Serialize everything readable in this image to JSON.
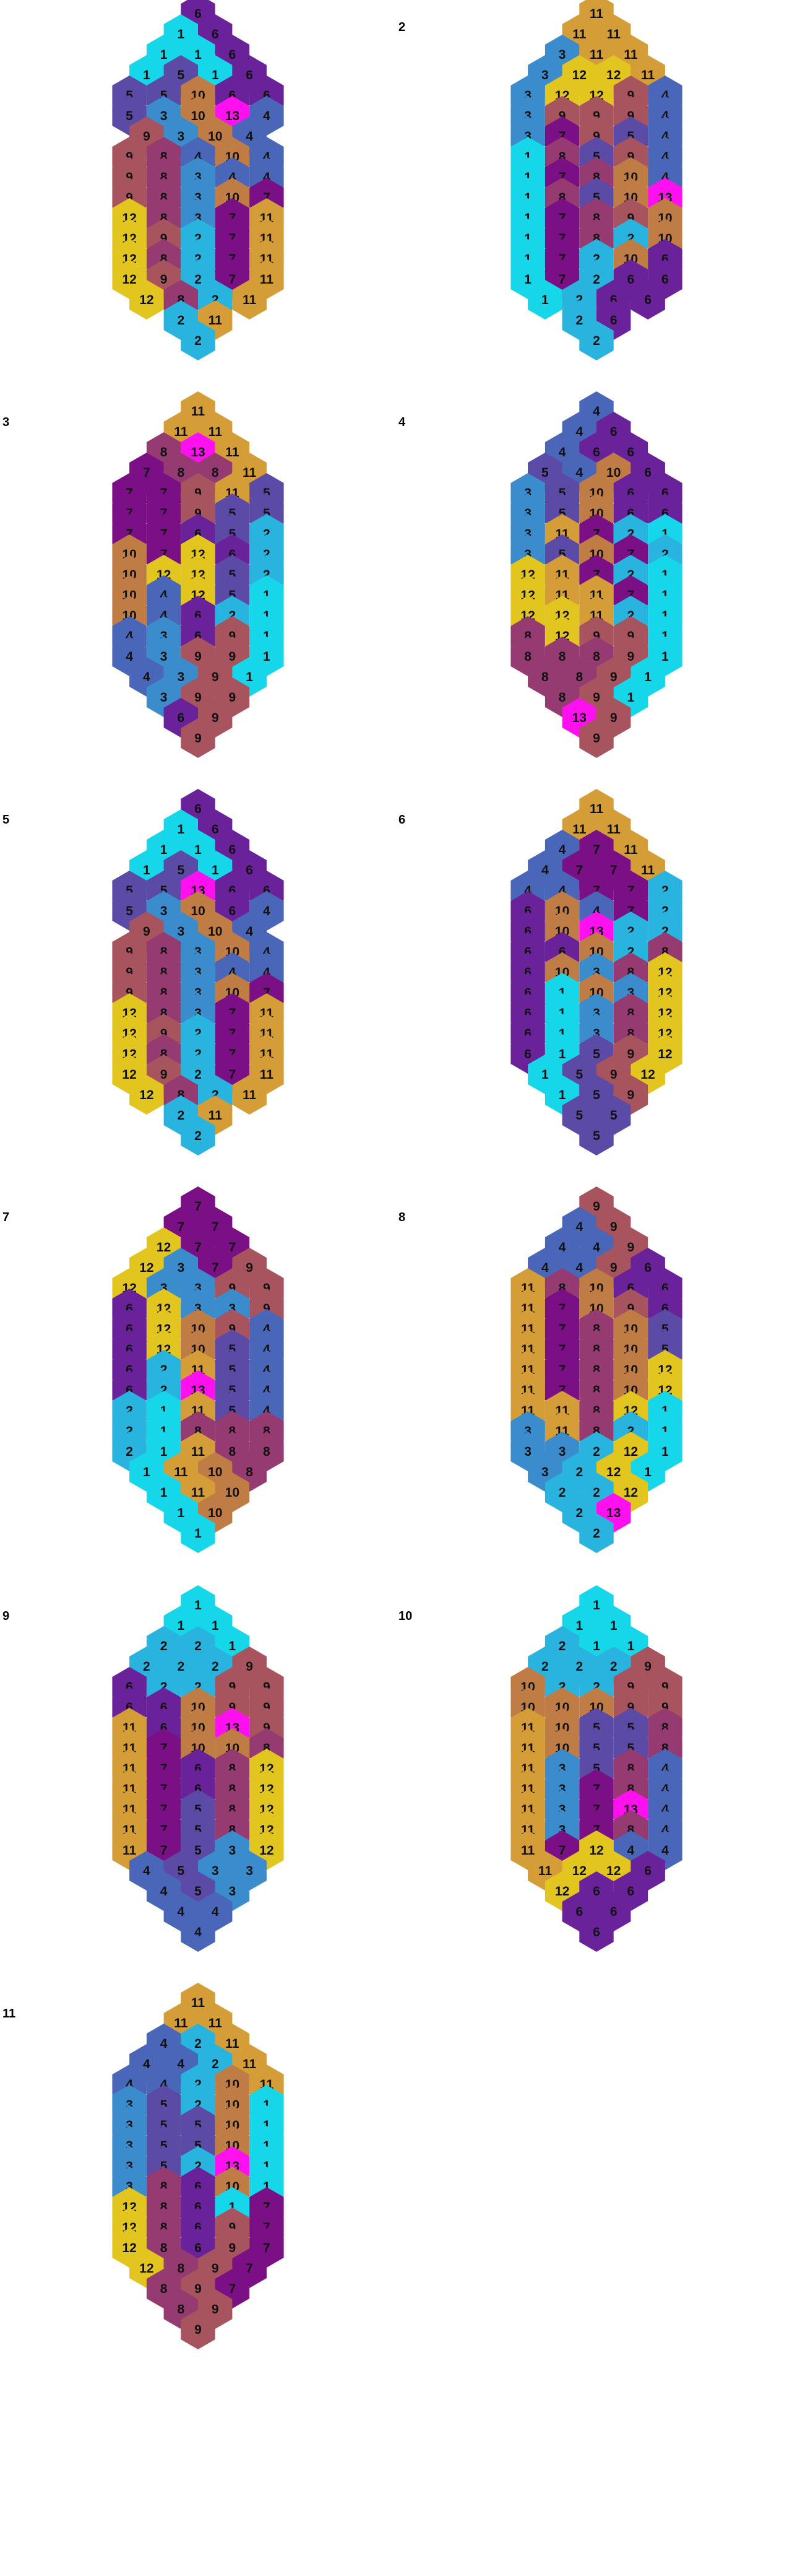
{
  "colors": {
    "1": "#16d6ea",
    "2": "#28b4df",
    "3": "#3b8ccc",
    "4": "#4a66b8",
    "5": "#5b4aa6",
    "6": "#6a229a",
    "7": "#7b0f85",
    "8": "#963a72",
    "9": "#a8545e",
    "10": "#c07c45",
    "11": "#d49d37",
    "12": "#e2c51e",
    "13": "#ff10ef"
  },
  "legend_hint": "numbers 1-13 mapped to colors",
  "panels": [
    {
      "label": "",
      "rows": [
        [
          6
        ],
        [
          1,
          6
        ],
        [
          1,
          1,
          6
        ],
        [
          1,
          5,
          1,
          6
        ],
        [
          5,
          5,
          10,
          6,
          6
        ],
        [
          5,
          3,
          10,
          13,
          4
        ],
        [
          9,
          3,
          10,
          4
        ],
        [
          9,
          8,
          4,
          10,
          4
        ],
        [
          9,
          8,
          3,
          4,
          4
        ],
        [
          9,
          8,
          3,
          10,
          7
        ],
        [
          12,
          8,
          3,
          7,
          11
        ],
        [
          12,
          9,
          2,
          7,
          11
        ],
        [
          12,
          8,
          2,
          7,
          11
        ],
        [
          12,
          9,
          2,
          7,
          11
        ],
        [
          12,
          8,
          2,
          11
        ],
        [
          2,
          11
        ],
        [
          2
        ]
      ]
    },
    {
      "label": "2",
      "rows": [
        [
          11
        ],
        [
          11,
          11
        ],
        [
          3,
          11,
          11
        ],
        [
          3,
          12,
          12,
          11
        ],
        [
          3,
          12,
          12,
          9,
          4
        ],
        [
          3,
          9,
          9,
          9,
          4
        ],
        [
          3,
          7,
          9,
          5,
          4
        ],
        [
          1,
          8,
          5,
          9,
          4
        ],
        [
          1,
          7,
          8,
          10,
          4
        ],
        [
          1,
          8,
          5,
          10,
          13
        ],
        [
          1,
          7,
          8,
          9,
          10
        ],
        [
          1,
          7,
          8,
          2,
          10
        ],
        [
          1,
          7,
          2,
          10,
          6
        ],
        [
          1,
          7,
          2,
          6,
          6
        ],
        [
          1,
          2,
          6,
          6
        ],
        [
          2,
          6
        ],
        [
          2
        ]
      ]
    },
    {
      "label": "3",
      "rows": [
        [
          11
        ],
        [
          11,
          11
        ],
        [
          8,
          13,
          11
        ],
        [
          7,
          8,
          8,
          11
        ],
        [
          7,
          7,
          9,
          11,
          5
        ],
        [
          7,
          7,
          9,
          5,
          5
        ],
        [
          7,
          7,
          6,
          5,
          2
        ],
        [
          10,
          7,
          12,
          6,
          2
        ],
        [
          10,
          12,
          12,
          5,
          2
        ],
        [
          10,
          4,
          12,
          5,
          1
        ],
        [
          10,
          4,
          6,
          2,
          1
        ],
        [
          4,
          3,
          6,
          9,
          1
        ],
        [
          4,
          3,
          9,
          9,
          1
        ],
        [
          4,
          3,
          9,
          1
        ],
        [
          3,
          9,
          9
        ],
        [
          6,
          9
        ],
        [
          9
        ]
      ]
    },
    {
      "label": "4",
      "rows": [
        [
          4
        ],
        [
          4,
          6
        ],
        [
          4,
          6,
          6
        ],
        [
          5,
          4,
          10,
          6
        ],
        [
          3,
          5,
          10,
          6,
          6
        ],
        [
          3,
          5,
          10,
          6,
          6
        ],
        [
          3,
          11,
          7,
          2,
          1
        ],
        [
          3,
          5,
          10,
          7,
          2
        ],
        [
          12,
          11,
          7,
          2,
          1
        ],
        [
          12,
          11,
          11,
          7,
          1
        ],
        [
          12,
          12,
          11,
          2,
          1
        ],
        [
          8,
          12,
          9,
          9,
          1
        ],
        [
          8,
          8,
          8,
          9,
          1
        ],
        [
          8,
          8,
          9,
          1
        ],
        [
          8,
          9,
          1
        ],
        [
          13,
          9
        ],
        [
          9
        ]
      ]
    },
    {
      "label": "5",
      "rows": [
        [
          6
        ],
        [
          1,
          6
        ],
        [
          1,
          1,
          6
        ],
        [
          1,
          5,
          1,
          6
        ],
        [
          5,
          5,
          13,
          6,
          6
        ],
        [
          5,
          3,
          10,
          6,
          4
        ],
        [
          9,
          3,
          10,
          4
        ],
        [
          9,
          8,
          3,
          10,
          4
        ],
        [
          9,
          8,
          3,
          4,
          4
        ],
        [
          9,
          8,
          3,
          10,
          7
        ],
        [
          12,
          8,
          3,
          7,
          11
        ],
        [
          12,
          9,
          2,
          7,
          11
        ],
        [
          12,
          8,
          2,
          7,
          11
        ],
        [
          12,
          9,
          2,
          7,
          11
        ],
        [
          12,
          8,
          2,
          11
        ],
        [
          2,
          11
        ],
        [
          2
        ]
      ]
    },
    {
      "label": "6",
      "rows": [
        [
          11
        ],
        [
          11,
          11
        ],
        [
          4,
          7,
          11
        ],
        [
          4,
          7,
          7,
          11
        ],
        [
          4,
          4,
          7,
          7,
          2
        ],
        [
          6,
          10,
          4,
          7,
          2
        ],
        [
          6,
          10,
          13,
          2,
          2
        ],
        [
          6,
          6,
          10,
          2,
          8
        ],
        [
          6,
          10,
          3,
          8,
          12
        ],
        [
          6,
          1,
          10,
          3,
          12
        ],
        [
          6,
          1,
          3,
          8,
          12
        ],
        [
          6,
          1,
          3,
          8,
          12
        ],
        [
          6,
          1,
          5,
          9,
          12
        ],
        [
          1,
          5,
          9,
          12
        ],
        [
          1,
          5,
          9
        ],
        [
          5,
          5
        ],
        [
          5
        ]
      ]
    },
    {
      "label": "7",
      "rows": [
        [
          7
        ],
        [
          7,
          7
        ],
        [
          12,
          7,
          7
        ],
        [
          12,
          3,
          7,
          9
        ],
        [
          12,
          3,
          3,
          9,
          9
        ],
        [
          6,
          12,
          3,
          3,
          9
        ],
        [
          6,
          12,
          10,
          9,
          4
        ],
        [
          6,
          12,
          10,
          5,
          4
        ],
        [
          6,
          2,
          11,
          5,
          4
        ],
        [
          6,
          2,
          13,
          5,
          4
        ],
        [
          2,
          1,
          11,
          5,
          4
        ],
        [
          2,
          1,
          8,
          8,
          8
        ],
        [
          2,
          1,
          11,
          8,
          8
        ],
        [
          1,
          11,
          10,
          8
        ],
        [
          1,
          11,
          10
        ],
        [
          1,
          10
        ],
        [
          1
        ]
      ]
    },
    {
      "label": "8",
      "rows": [
        [
          9
        ],
        [
          4,
          9
        ],
        [
          4,
          4,
          9
        ],
        [
          4,
          4,
          9,
          6
        ],
        [
          11,
          8,
          10,
          6,
          6
        ],
        [
          11,
          7,
          10,
          9,
          6
        ],
        [
          11,
          7,
          8,
          10,
          5
        ],
        [
          11,
          7,
          8,
          10,
          5
        ],
        [
          11,
          7,
          8,
          10,
          12
        ],
        [
          11,
          7,
          8,
          10,
          12
        ],
        [
          11,
          11,
          8,
          12,
          1
        ],
        [
          3,
          11,
          8,
          2,
          1
        ],
        [
          3,
          3,
          2,
          12,
          1
        ],
        [
          3,
          2,
          12,
          1
        ],
        [
          2,
          2,
          12
        ],
        [
          2,
          13
        ],
        [
          2
        ]
      ]
    },
    {
      "label": "9",
      "rows": [
        [
          1
        ],
        [
          1,
          1
        ],
        [
          2,
          2,
          1
        ],
        [
          2,
          2,
          2,
          9
        ],
        [
          6,
          2,
          2,
          9,
          9
        ],
        [
          6,
          6,
          10,
          9,
          9
        ],
        [
          11,
          6,
          10,
          13,
          9
        ],
        [
          11,
          7,
          10,
          10,
          8
        ],
        [
          11,
          7,
          6,
          8,
          12
        ],
        [
          11,
          7,
          6,
          8,
          12
        ],
        [
          11,
          7,
          5,
          8,
          12
        ],
        [
          11,
          7,
          5,
          8,
          12
        ],
        [
          11,
          7,
          5,
          3,
          12
        ],
        [
          4,
          5,
          3,
          3
        ],
        [
          4,
          5,
          3
        ],
        [
          4,
          4
        ],
        [
          4
        ]
      ]
    },
    {
      "label": "10",
      "rows": [
        [
          1
        ],
        [
          1,
          1
        ],
        [
          2,
          1,
          1
        ],
        [
          2,
          2,
          2,
          9
        ],
        [
          10,
          2,
          2,
          9,
          9
        ],
        [
          10,
          10,
          10,
          9,
          9
        ],
        [
          11,
          10,
          5,
          5,
          8
        ],
        [
          11,
          10,
          5,
          5,
          8
        ],
        [
          11,
          3,
          5,
          8,
          4
        ],
        [
          11,
          3,
          7,
          8,
          4
        ],
        [
          11,
          3,
          7,
          13,
          4
        ],
        [
          11,
          3,
          7,
          8,
          4
        ],
        [
          11,
          7,
          12,
          4,
          4
        ],
        [
          11,
          12,
          12,
          6
        ],
        [
          12,
          6,
          6
        ],
        [
          6,
          6
        ],
        [
          6
        ]
      ]
    },
    {
      "label": "11",
      "rows": [
        [
          11
        ],
        [
          11,
          11
        ],
        [
          4,
          2,
          11
        ],
        [
          4,
          4,
          2,
          11
        ],
        [
          4,
          4,
          2,
          10,
          11
        ],
        [
          3,
          5,
          2,
          10,
          1
        ],
        [
          3,
          5,
          5,
          10,
          1
        ],
        [
          3,
          5,
          5,
          10,
          1
        ],
        [
          3,
          5,
          2,
          13,
          1
        ],
        [
          3,
          8,
          6,
          10,
          1
        ],
        [
          12,
          8,
          6,
          1,
          7
        ],
        [
          12,
          8,
          6,
          9,
          7
        ],
        [
          12,
          8,
          6,
          9,
          7
        ],
        [
          12,
          8,
          9,
          7
        ],
        [
          8,
          9,
          7
        ],
        [
          8,
          9
        ],
        [
          9
        ]
      ]
    }
  ]
}
